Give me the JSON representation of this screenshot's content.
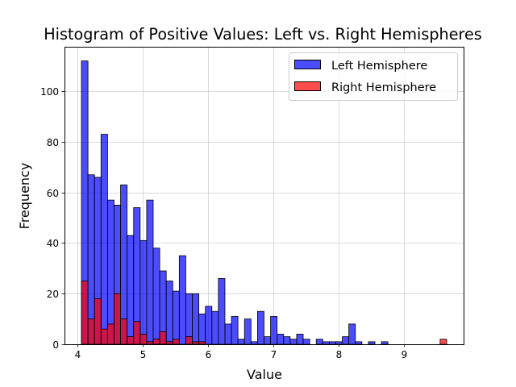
{
  "chart_data": {
    "type": "histogram",
    "title": "Histogram of Positive Values: Left vs. Right Hemispheres",
    "xlabel": "Value",
    "ylabel": "Frequency",
    "xlim": [
      3.8,
      9.92
    ],
    "ylim": [
      0,
      117.6
    ],
    "grid": true,
    "legend_position": "top-right",
    "x_ticks": [
      4,
      5,
      6,
      7,
      8,
      9
    ],
    "y_ticks": [
      0,
      20,
      40,
      60,
      80,
      100
    ],
    "bins": {
      "start": 4.06,
      "width": 0.1
    },
    "series": [
      {
        "name": "Left Hemisphere",
        "color": "#0000ff",
        "counts": [
          112,
          67,
          66,
          83,
          57,
          55,
          63,
          43,
          54,
          41,
          57,
          38,
          29,
          25,
          21,
          35,
          20,
          20,
          12,
          15,
          13,
          26,
          8,
          11,
          2,
          10,
          1,
          13,
          3,
          11,
          4,
          3,
          2,
          4,
          2,
          0,
          2,
          1,
          1,
          1,
          3,
          8,
          1,
          0,
          1,
          0,
          1,
          0,
          0,
          0,
          0,
          0,
          0,
          0,
          0,
          0
        ]
      },
      {
        "name": "Right Hemisphere",
        "color": "#ff0000",
        "counts": [
          25,
          10,
          18,
          6,
          8,
          20,
          10,
          3,
          9,
          4,
          1,
          2,
          5,
          1,
          2,
          0,
          3,
          1,
          1,
          0,
          0,
          0,
          0,
          0,
          0,
          0,
          0,
          0,
          0,
          0,
          0,
          0,
          0,
          0,
          0,
          0,
          0,
          0,
          0,
          0,
          0,
          0,
          0,
          0,
          0,
          0,
          0,
          0,
          0,
          0,
          0,
          0,
          0,
          0,
          0,
          2
        ]
      }
    ]
  }
}
